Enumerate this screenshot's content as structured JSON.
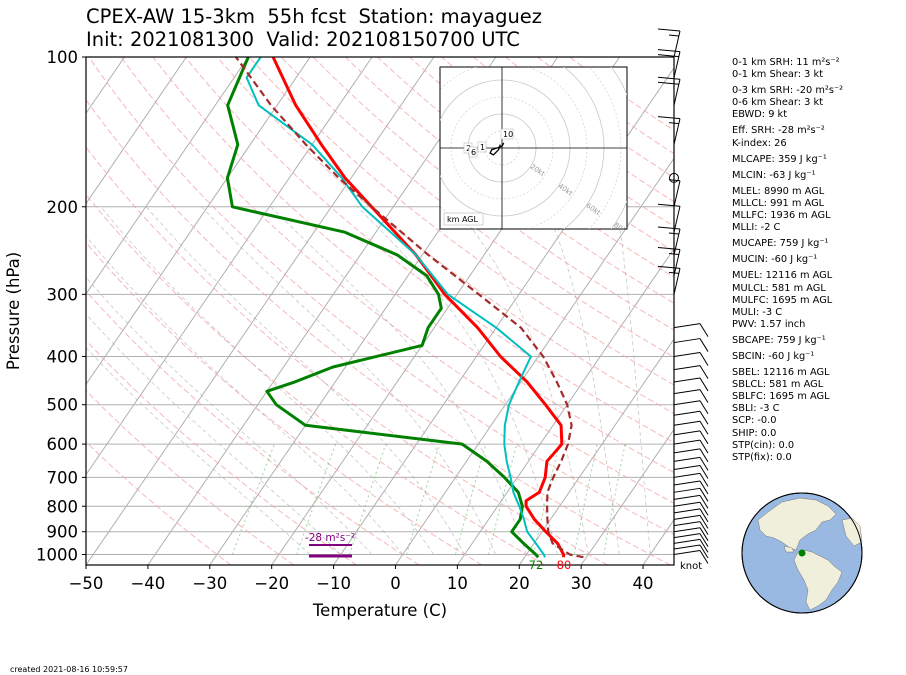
{
  "title_line1": "CPEX-AW 15-3km  55h fcst  Station: mayaguez",
  "title_line2": "Init: 2021081300  Valid: 202108150700 UTC",
  "created": "created 2021-08-16 10:59:57",
  "hodograph_label": "km AGL",
  "barb_units": "knot",
  "indices": [
    {
      "label": "0-1 km SRH: 11 m²s⁻²",
      "gap": false
    },
    {
      "label": "0-1 km Shear: 3 kt",
      "gap": false
    },
    {
      "label": "0-3 km SRH: -20 m²s⁻²",
      "gap": true
    },
    {
      "label": "0-6 km Shear: 3 kt",
      "gap": false
    },
    {
      "label": "EBWD: 9 kt",
      "gap": false
    },
    {
      "label": "Eff. SRH: -28 m²s⁻²",
      "gap": true
    },
    {
      "label": "K-index: 26",
      "gap": false
    },
    {
      "label": "MLCAPE: 359 J kg⁻¹",
      "gap": true
    },
    {
      "label": "MLCIN: -63 J kg⁻¹",
      "gap": true
    },
    {
      "label": "MLEL: 8990 m AGL",
      "gap": true
    },
    {
      "label": "MLLCL: 991 m AGL",
      "gap": false
    },
    {
      "label": "MLLFC: 1936 m AGL",
      "gap": false
    },
    {
      "label": "MLLI: -2 C",
      "gap": false
    },
    {
      "label": "MUCAPE: 759 J kg⁻¹",
      "gap": true
    },
    {
      "label": "MUCIN: -60 J kg⁻¹",
      "gap": true
    },
    {
      "label": "MUEL: 12116 m AGL",
      "gap": true
    },
    {
      "label": "MULCL: 581 m AGL",
      "gap": false
    },
    {
      "label": "MULFC: 1695 m AGL",
      "gap": false
    },
    {
      "label": "MULI: -3 C",
      "gap": false
    },
    {
      "label": "PWV: 1.57 inch",
      "gap": false
    },
    {
      "label": "SBCAPE: 759 J kg⁻¹",
      "gap": true
    },
    {
      "label": "SBCIN: -60 J kg⁻¹",
      "gap": true
    },
    {
      "label": "SBEL: 12116 m AGL",
      "gap": true
    },
    {
      "label": "SBLCL: 581 m AGL",
      "gap": false
    },
    {
      "label": "SBLFC: 1695 m AGL",
      "gap": false
    },
    {
      "label": "SBLI: -3 C",
      "gap": false
    },
    {
      "label": "SCP: -0.0",
      "gap": false
    },
    {
      "label": "SHIP: 0.0",
      "gap": false
    },
    {
      "label": "STP(cin): 0.0",
      "gap": false
    },
    {
      "label": "STP(fix): 0.0",
      "gap": false
    }
  ],
  "colors": {
    "temperature": "#ff0000",
    "dewpoint": "#008000",
    "wetbulb": "#00bfbf",
    "parcel": "#a52a2a",
    "isotherm": "#b0b0b0",
    "dry_adiabat": "#f4a6a6",
    "moist_adiabat": "#b0b0b0",
    "mixing_ratio": "#5cb85c",
    "srh_bar": "#800080",
    "globe_ocean": "#99b9e2",
    "globe_land": "#efefdb",
    "station": "#008000"
  },
  "chart_data": {
    "type": "skew-t log-p",
    "xlabel": "Temperature (C)",
    "ylabel": "Pressure (hPa)",
    "xlim": [
      -50,
      45
    ],
    "ylim": [
      1050,
      100
    ],
    "x_ticks": [
      -50,
      -40,
      -30,
      -20,
      -10,
      0,
      10,
      20,
      30,
      40
    ],
    "y_ticks": [
      100,
      200,
      300,
      400,
      500,
      600,
      700,
      800,
      900,
      1000
    ],
    "grid": true,
    "surface_dewpoint_label": "72",
    "surface_temperature_label": "80",
    "effective_srh_label": "-28 m²s⁻²",
    "series": [
      {
        "key": "temperature",
        "p": [
          1013,
          1000,
          950,
          900,
          850,
          800,
          780,
          750,
          700,
          650,
          620,
          600,
          550,
          500,
          450,
          400,
          350,
          300,
          250,
          200,
          175,
          150,
          125,
          100
        ],
        "t": [
          26.3,
          26.0,
          23.8,
          20.6,
          17.4,
          14.6,
          14.0,
          15.2,
          14.5,
          13.0,
          13.3,
          13.5,
          11.3,
          6.5,
          1.0,
          -6.1,
          -13.0,
          -22.0,
          -31.0,
          -43.5,
          -51.0,
          -58.5,
          -67.0,
          -76.0
        ]
      },
      {
        "key": "dewpoint",
        "p": [
          1013,
          1000,
          950,
          900,
          850,
          800,
          750,
          700,
          650,
          600,
          550,
          500,
          470,
          450,
          420,
          380,
          350,
          320,
          300,
          275,
          250,
          225,
          200,
          175,
          150,
          125,
          100
        ],
        "t": [
          22.2,
          21.5,
          18.3,
          15.1,
          15.1,
          14.0,
          11.8,
          7.9,
          3.3,
          -2.6,
          -30.0,
          -37.0,
          -40.0,
          -36.5,
          -32.0,
          -20.0,
          -21.0,
          -21.0,
          -23.0,
          -27.0,
          -34.0,
          -45.0,
          -66.0,
          -70.0,
          -72.0,
          -78.0,
          -80.0
        ]
      },
      {
        "key": "wetbulb",
        "p": [
          1013,
          1000,
          950,
          900,
          850,
          800,
          750,
          700,
          650,
          600,
          550,
          500,
          450,
          400,
          350,
          300,
          250,
          200,
          175,
          150,
          125,
          110,
          100
        ],
        "t": [
          23.3,
          22.8,
          20.3,
          17.6,
          15.7,
          13.5,
          11.0,
          8.9,
          6.5,
          4.2,
          2.2,
          0.6,
          -0.3,
          -1.2,
          -10.0,
          -21.5,
          -31.0,
          -45.0,
          -51.5,
          -60.0,
          -73.0,
          -78.0,
          -78.0
        ]
      },
      {
        "key": "parcel",
        "p": [
          1013,
          1000,
          950,
          900,
          850,
          800,
          750,
          700,
          650,
          600,
          550,
          500,
          450,
          400,
          350,
          300,
          250,
          200,
          175,
          150,
          125,
          100
        ],
        "t": [
          29.5,
          27.0,
          23.0,
          21.0,
          19.5,
          18.0,
          16.5,
          15.8,
          15.3,
          14.5,
          13.0,
          10.0,
          5.8,
          0.8,
          -6.0,
          -16.5,
          -29.0,
          -43.5,
          -52.0,
          -61.0,
          -71.0,
          -82.0
        ]
      }
    ],
    "wind_barbs_kt": [
      {
        "p": 1000,
        "spd": 10
      },
      {
        "p": 975,
        "spd": 10
      },
      {
        "p": 950,
        "spd": 10
      },
      {
        "p": 925,
        "spd": 10
      },
      {
        "p": 900,
        "spd": 10
      },
      {
        "p": 875,
        "spd": 10
      },
      {
        "p": 850,
        "spd": 10
      },
      {
        "p": 825,
        "spd": 10
      },
      {
        "p": 800,
        "spd": 10
      },
      {
        "p": 775,
        "spd": 10
      },
      {
        "p": 750,
        "spd": 10
      },
      {
        "p": 725,
        "spd": 10
      },
      {
        "p": 700,
        "spd": 10
      },
      {
        "p": 675,
        "spd": 10
      },
      {
        "p": 650,
        "spd": 10
      },
      {
        "p": 625,
        "spd": 10
      },
      {
        "p": 600,
        "spd": 10
      },
      {
        "p": 575,
        "spd": 10
      },
      {
        "p": 550,
        "spd": 10
      },
      {
        "p": 525,
        "spd": 10
      },
      {
        "p": 500,
        "spd": 10
      },
      {
        "p": 475,
        "spd": 10
      },
      {
        "p": 450,
        "spd": 10
      },
      {
        "p": 425,
        "spd": 10
      },
      {
        "p": 400,
        "spd": 10
      },
      {
        "p": 375,
        "spd": 10
      },
      {
        "p": 350,
        "spd": 10
      },
      {
        "p": 300,
        "spd": 15
      },
      {
        "p": 275,
        "spd": 15
      },
      {
        "p": 250,
        "spd": 15
      },
      {
        "p": 225,
        "spd": 10
      },
      {
        "p": 200,
        "spd": 5
      },
      {
        "p": 175,
        "spd": 0
      },
      {
        "p": 150,
        "spd": 15
      },
      {
        "p": 125,
        "spd": 20
      },
      {
        "p": 110,
        "spd": 20
      },
      {
        "p": 100,
        "spd": 15
      }
    ],
    "hodograph": {
      "ring_labels": [
        "20kt",
        "40kt",
        "60kt",
        "80kt"
      ],
      "height_labels": [
        "10",
        "1",
        "2",
        "6"
      ],
      "u_kt": [
        1,
        0,
        -3,
        -6,
        -7,
        -5,
        -2,
        -1
      ],
      "v_kt": [
        3,
        1,
        0,
        -1,
        -3,
        -4,
        -1,
        2
      ]
    }
  }
}
